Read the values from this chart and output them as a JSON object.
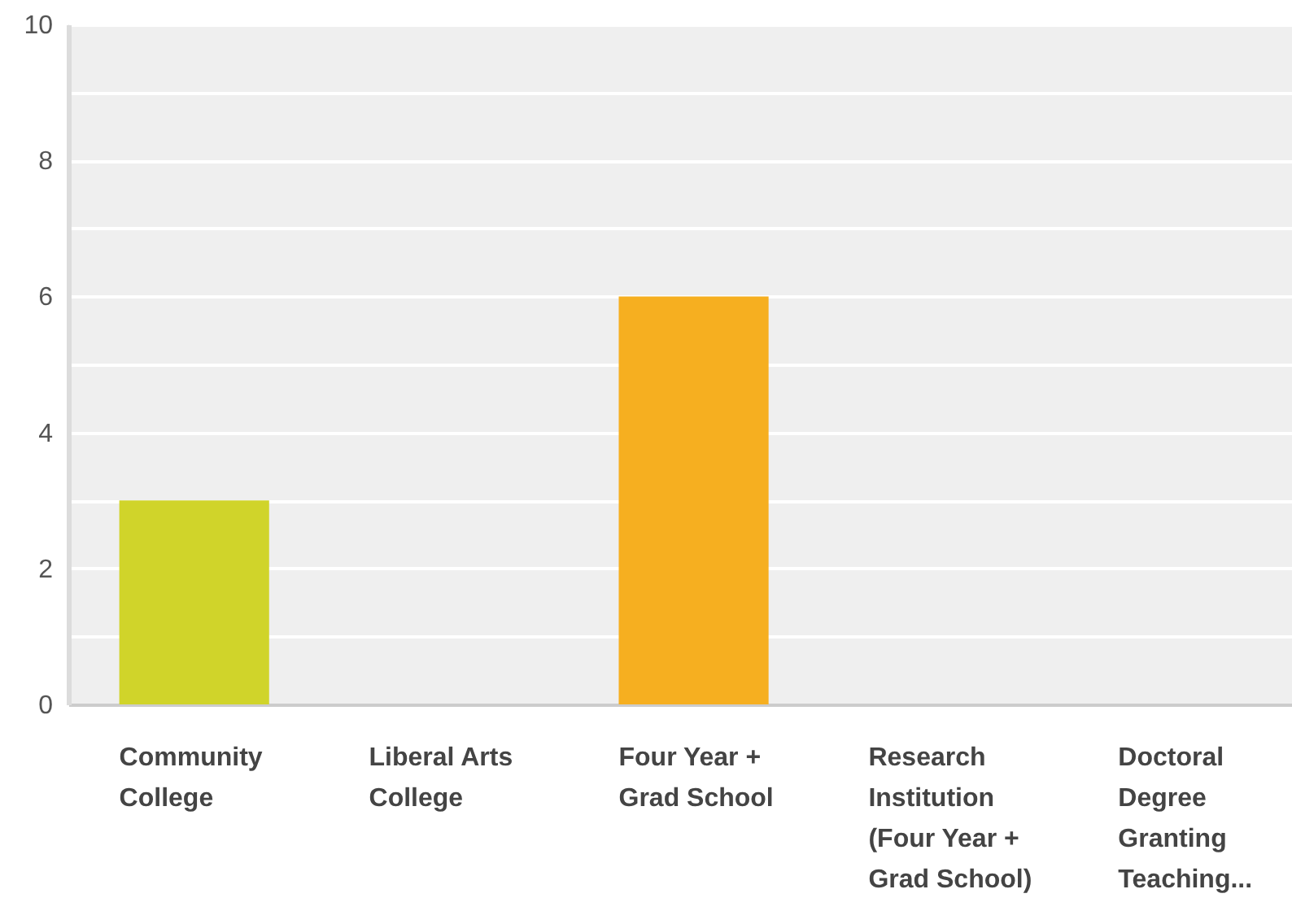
{
  "chart_data": {
    "type": "bar",
    "categories": [
      "Community College",
      "Liberal Arts College",
      "Four Year + Grad School",
      "Research Institution (Four Year + Grad School)",
      "Doctoral Degree Granting Teaching..."
    ],
    "values": [
      3,
      0,
      6,
      0,
      0
    ],
    "colors": [
      "#d0d42a",
      null,
      "#f6af20",
      null,
      null
    ],
    "ylim": [
      0,
      10
    ],
    "yticks": [
      0,
      {
        "value": 1,
        "label": null
      },
      2,
      {
        "value": 3,
        "label": null
      },
      4,
      {
        "value": 5,
        "label": null
      },
      6,
      {
        "value": 7,
        "label": null
      },
      8,
      {
        "value": 9,
        "label": null
      },
      10
    ],
    "grid": "y"
  }
}
